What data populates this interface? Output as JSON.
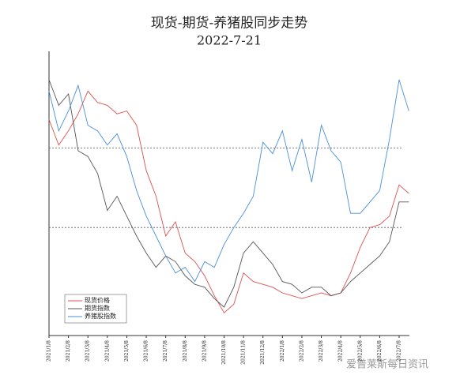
{
  "chart_data": {
    "type": "line",
    "title": "现货-期货-养猪股同步走势",
    "subtitle": "2022-7-21",
    "watermark": "爱普莱斯每日资讯",
    "categories": [
      "2021/1/8",
      null,
      "2021/2/8",
      null,
      "2021/3/8",
      null,
      "2021/4/8",
      null,
      "2021/5/8",
      null,
      "2021/6/8",
      null,
      "2021/7/8",
      null,
      "2021/8/8",
      null,
      "2021/9/8",
      null,
      "2021/10/8",
      null,
      "2021/11/8",
      null,
      "2021/12/8",
      null,
      "2022/1/8",
      null,
      "2022/2/8",
      null,
      "2022/3/8",
      null,
      "2022/4/8",
      null,
      "2022/5/8",
      null,
      "2022/6/8",
      null,
      "2022/7/8",
      null
    ],
    "series": [
      {
        "name": "现货价格",
        "color": "#e05050",
        "values": [
          76,
          67,
          72,
          78,
          86,
          82,
          81,
          78,
          79,
          74,
          58,
          49,
          35,
          40,
          29,
          26,
          21,
          14,
          8,
          11,
          22,
          19,
          18,
          17,
          15,
          14,
          13,
          14,
          15,
          14,
          15,
          22,
          31,
          38,
          39,
          42,
          53,
          50
        ]
      },
      {
        "name": "期货指数",
        "color": "#555555",
        "values": [
          90,
          81,
          85,
          65,
          63,
          57,
          44,
          49,
          42,
          35,
          29,
          24,
          28,
          26,
          21,
          18,
          17,
          13,
          10,
          17,
          29,
          33,
          29,
          25,
          19,
          18,
          15,
          17,
          17,
          14,
          15,
          19,
          22,
          25,
          28,
          33,
          47,
          47
        ]
      },
      {
        "name": "养猪股指数",
        "color": "#4a8fd9",
        "values": [
          86,
          72,
          79,
          88,
          74,
          72,
          67,
          71,
          63,
          51,
          42,
          35,
          28,
          22,
          24,
          19,
          26,
          24,
          32,
          38,
          43,
          49,
          68,
          64,
          72,
          58,
          69,
          54,
          74,
          65,
          61,
          43,
          43,
          47,
          51,
          69,
          90,
          79
        ]
      }
    ],
    "ylim": [
      0,
      100
    ],
    "reference_lines": [
      66,
      38
    ]
  }
}
